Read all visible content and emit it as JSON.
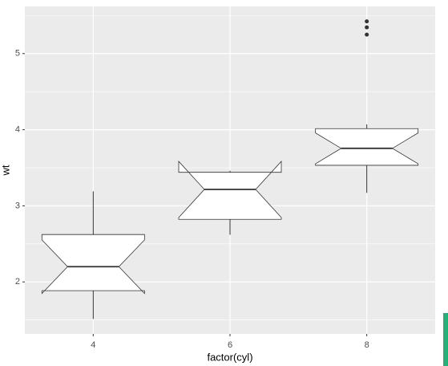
{
  "chart_data": {
    "type": "boxplot",
    "notch": true,
    "x_label": "factor(cyl)",
    "y_label": "wt",
    "categories": [
      "4",
      "6",
      "8"
    ],
    "boxes": [
      {
        "min": 1.513,
        "q1": 1.885,
        "median": 2.2,
        "q3": 2.623,
        "max": 3.19,
        "notch_lower": 1.848,
        "notch_upper": 2.552,
        "outliers": []
      },
      {
        "min": 2.62,
        "q1": 2.8225,
        "median": 3.215,
        "q3": 3.44,
        "max": 3.46,
        "notch_lower": 2.846,
        "notch_upper": 3.584,
        "outliers": []
      },
      {
        "min": 3.17,
        "q1": 3.5325,
        "median": 3.755,
        "q3": 4.014,
        "max": 4.07,
        "notch_lower": 3.552,
        "notch_upper": 3.958,
        "outliers": [
          5.25,
          5.345,
          5.424
        ]
      }
    ],
    "ylim": [
      1.317,
      5.62
    ],
    "yticks": [
      2,
      3,
      4,
      5
    ],
    "y_minor_breaks": [
      1.5,
      2.5,
      3.5,
      4.5,
      5.5
    ],
    "grid": true,
    "box_fill": "#ffffff",
    "box_color": "#333333",
    "panel_color": "#ebebeb"
  }
}
